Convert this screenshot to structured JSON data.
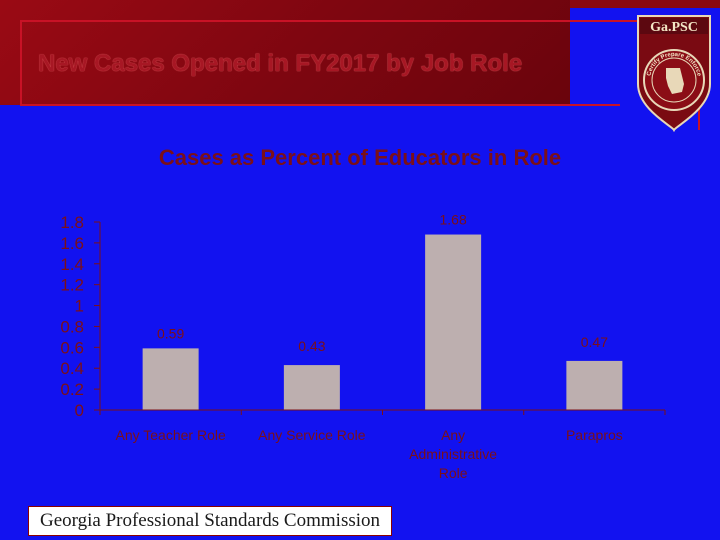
{
  "slide": {
    "title": "New Cases Opened in FY2017 by Job Role",
    "footer": "Georgia Professional Standards Commission",
    "logo_text": "Ga.PSC",
    "logo_ring_text": "Certify Prepare Enforce"
  },
  "colors": {
    "background": "#1212f0",
    "header": "#8a0810",
    "bar": "#bdafaf",
    "text": "#7b1018",
    "axis": "#7b1018"
  },
  "chart_data": {
    "type": "bar",
    "title": "Cases as Percent of Educators in Role",
    "categories": [
      "Any Teacher Role",
      "Any Service Role",
      "Any Administrative Role",
      "Parapros"
    ],
    "category_lines": [
      [
        "Any Teacher Role"
      ],
      [
        "Any Service Role"
      ],
      [
        "Any",
        "Administrative",
        "Role"
      ],
      [
        "Parapros"
      ]
    ],
    "values": [
      0.59,
      0.43,
      1.68,
      0.47
    ],
    "data_labels": [
      "0.59",
      "0.43",
      "1.68",
      "0.47"
    ],
    "ylim": [
      0,
      1.8
    ],
    "yticks": [
      "0",
      "0.2",
      "0.4",
      "0.6",
      "0.8",
      "1",
      "1.2",
      "1.4",
      "1.6",
      "1.8"
    ],
    "ytick_values": [
      0,
      0.2,
      0.4,
      0.6,
      0.8,
      1,
      1.2,
      1.4,
      1.6,
      1.8
    ],
    "grid": false,
    "legend": "none"
  }
}
